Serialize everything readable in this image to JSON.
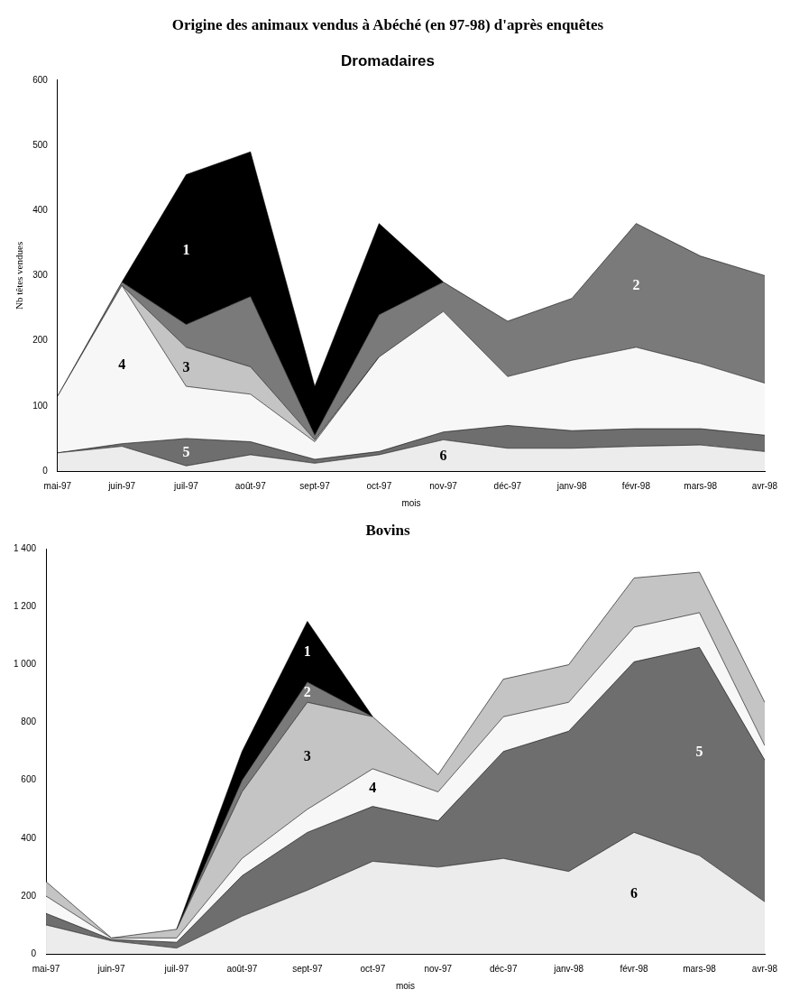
{
  "chart_data": [
    {
      "type": "area",
      "stacked": true,
      "title": "Origine des animaux vendus à Abéché (en 97-98) d'après enquêtes",
      "subtitle": "Dromadaires",
      "ylabel": "Nb têtes vendues",
      "xlabel": "mois",
      "categories": [
        "mai-97",
        "juin-97",
        "juil-97",
        "août-97",
        "sept-97",
        "oct-97",
        "nov-97",
        "déc-97",
        "janv-98",
        "févr-98",
        "mars-98",
        "avr-98"
      ],
      "ylim": [
        0,
        600
      ],
      "yticks": [
        0,
        100,
        200,
        300,
        400,
        500,
        600
      ],
      "grid": false,
      "series": [
        {
          "name": "6",
          "color": "#ececec",
          "values": [
            28,
            38,
            8,
            25,
            12,
            25,
            48,
            35,
            35,
            38,
            40,
            30
          ]
        },
        {
          "name": "5",
          "color": "#6e6e6e",
          "values": [
            0,
            4,
            42,
            20,
            6,
            5,
            12,
            35,
            27,
            27,
            25,
            25
          ]
        },
        {
          "name": "4",
          "color": "#f7f7f7",
          "values": [
            87,
            243,
            80,
            73,
            27,
            145,
            185,
            75,
            108,
            125,
            100,
            80
          ]
        },
        {
          "name": "3",
          "color": "#c4c4c4",
          "values": [
            null,
            0,
            60,
            42,
            3,
            0,
            null,
            null,
            null,
            null,
            null,
            null
          ]
        },
        {
          "name": "2",
          "color": "#7a7a7a",
          "values": [
            0,
            5,
            35,
            108,
            7,
            65,
            45,
            85,
            95,
            190,
            165,
            165
          ]
        },
        {
          "name": "1",
          "color": "#000000",
          "values": [
            null,
            0,
            230,
            222,
            75,
            140,
            0,
            null,
            null,
            null,
            null,
            null
          ]
        }
      ]
    },
    {
      "type": "area",
      "stacked": true,
      "title": "Bovins",
      "xlabel": "mois",
      "categories": [
        "mai-97",
        "juin-97",
        "juil-97",
        "août-97",
        "sept-97",
        "oct-97",
        "nov-97",
        "déc-97",
        "janv-98",
        "févr-98",
        "mars-98",
        "avr-98"
      ],
      "ylim": [
        0,
        1400
      ],
      "yticks": [
        0,
        200,
        400,
        600,
        800,
        {
          "value": 1000,
          "label": "1 000"
        },
        {
          "value": 1200,
          "label": "1 200"
        },
        {
          "value": 1400,
          "label": "1 400"
        }
      ],
      "grid": false,
      "series": [
        {
          "name": "6",
          "color": "#ececec",
          "values": [
            100,
            45,
            20,
            130,
            220,
            320,
            300,
            330,
            285,
            420,
            340,
            180
          ]
        },
        {
          "name": "5",
          "color": "#6e6e6e",
          "values": [
            40,
            5,
            20,
            140,
            200,
            190,
            160,
            370,
            485,
            590,
            720,
            490
          ]
        },
        {
          "name": "4",
          "color": "#f7f7f7",
          "values": [
            60,
            5,
            15,
            60,
            80,
            130,
            100,
            120,
            100,
            120,
            120,
            50
          ]
        },
        {
          "name": "3",
          "color": "#c4c4c4",
          "values": [
            50,
            0,
            30,
            230,
            370,
            180,
            60,
            130,
            130,
            170,
            140,
            150
          ]
        },
        {
          "name": "2",
          "color": "#7a7a7a",
          "values": [
            null,
            null,
            0,
            40,
            70,
            0,
            null,
            null,
            null,
            null,
            null,
            null
          ]
        },
        {
          "name": "1",
          "color": "#000000",
          "values": [
            null,
            null,
            0,
            100,
            210,
            0,
            null,
            null,
            null,
            null,
            null,
            null
          ]
        }
      ]
    }
  ]
}
